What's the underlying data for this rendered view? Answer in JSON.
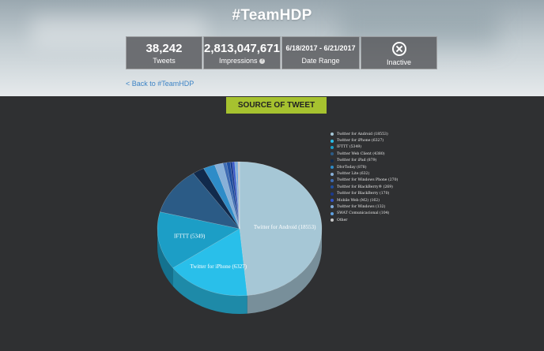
{
  "header": {
    "title": "#TeamHDP"
  },
  "stats": {
    "tweets_value": "38,242",
    "tweets_label": "Tweets",
    "impressions_value": "2,813,047,671",
    "impressions_label": "Impressions",
    "impressions_help": "?",
    "date_range_value": "6/18/2017 - 6/21/2017",
    "date_range_label": "Date Range",
    "status_label": "Inactive"
  },
  "nav": {
    "back_link": "< Back to #TeamHDP"
  },
  "section": {
    "title": "SOURCE OF TWEET"
  },
  "chart_data": {
    "type": "pie",
    "slices": [
      {
        "name": "Twitter for Android",
        "value": 18553,
        "color": "#a6c7d6",
        "label": "Twitter for Android (18553)",
        "legend": "Twitter for Android (18553)"
      },
      {
        "name": "Twitter for iPhone",
        "value": 6327,
        "color": "#29bfea",
        "label": "Twitter for iPhone (6327)",
        "legend": "Twitter for iPhone (6327)"
      },
      {
        "name": "IFTTT",
        "value": 5349,
        "color": "#1c9ec6",
        "label": "IFTTT (5349)",
        "legend": "IFTTT (5349)"
      },
      {
        "name": "Twitter Web Client",
        "value": 4380,
        "color": "#2b5b86",
        "label": "",
        "legend": "Twitter Web Client (4380)"
      },
      {
        "name": "Twitter for iPad",
        "value": 879,
        "color": "#112a4c",
        "label": "",
        "legend": "Twitter for iPad (879)"
      },
      {
        "name": "DlvrToday",
        "value": 878,
        "color": "#2e8cc8",
        "label": "",
        "legend": "DlvrToday (878)"
      },
      {
        "name": "Twitter Lite",
        "value": 632,
        "color": "#88b0d8",
        "label": "",
        "legend": "Twitter Lite (632)"
      },
      {
        "name": "Twitter for Windows Phone",
        "value": 270,
        "color": "#3f6db4",
        "label": "",
        "legend": "Twitter for Windows Phone (270)"
      },
      {
        "name": "Twitter for BlackBerry®",
        "value": 269,
        "color": "#1f4ea0",
        "label": "",
        "legend": "Twitter for BlackBerry® (269)"
      },
      {
        "name": "Twitter for BlackBerry",
        "value": 170,
        "color": "#1b3a8e",
        "label": "",
        "legend": "Twitter for BlackBerry (170)"
      },
      {
        "name": "Mobile Web (M2)",
        "value": 162,
        "color": "#3355cc",
        "label": "",
        "legend": "Mobile Web (M2) (162)"
      },
      {
        "name": "Twitter for Windows",
        "value": 132,
        "color": "#7ea8d8",
        "label": "",
        "legend": "Twitter for Windows (132)"
      },
      {
        "name": "SWAT Comunicacional",
        "value": 104,
        "color": "#5fa0e0",
        "label": "",
        "legend": "SWAT Comunicacional (104)"
      },
      {
        "name": "Other",
        "value": 137,
        "color": "#c8c8c8",
        "label": "",
        "legend": "Other"
      }
    ]
  }
}
